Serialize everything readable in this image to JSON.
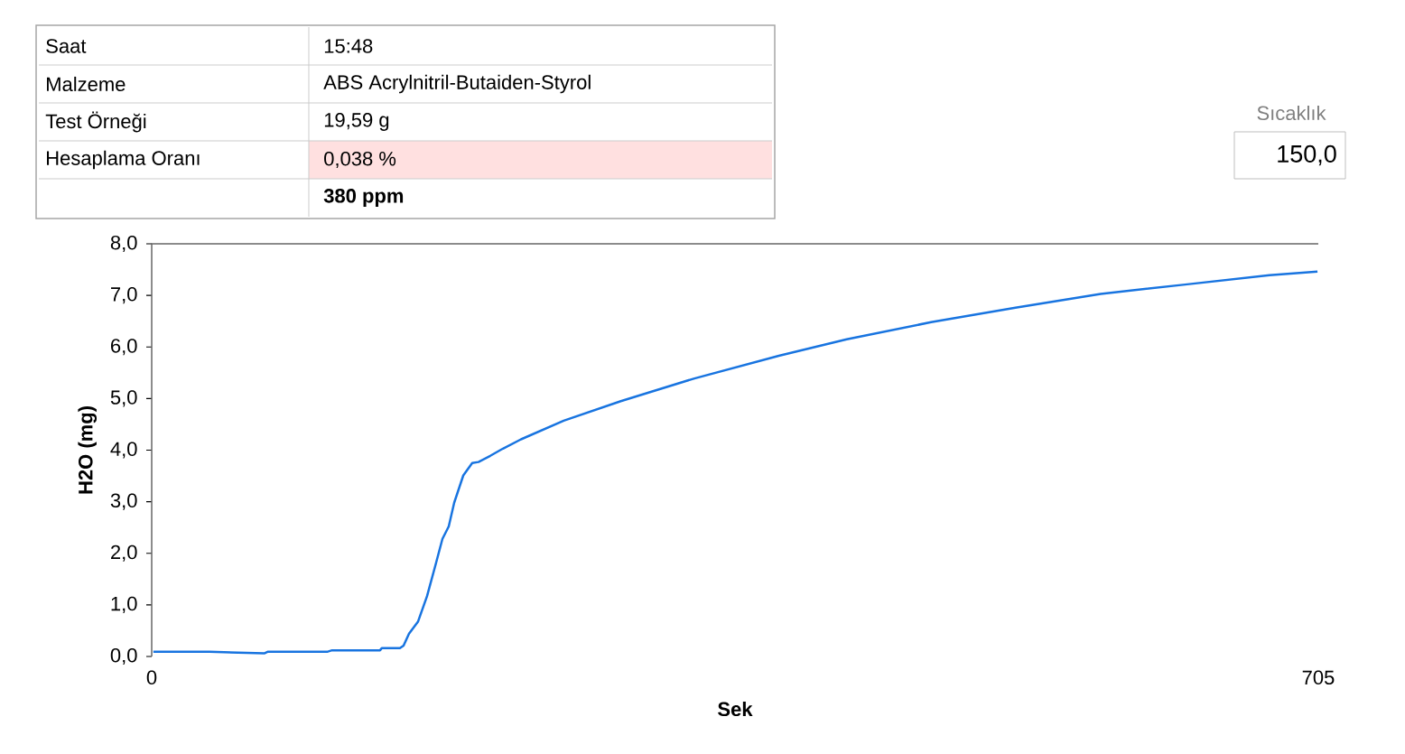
{
  "chart_data": {
    "type": "line",
    "xlabel": "Sek",
    "ylabel": "H2O (mg)",
    "xlim": [
      0,
      705
    ],
    "ylim": [
      0,
      8
    ],
    "xticks": [
      0,
      705
    ],
    "yticks": [
      {
        "value": 0,
        "label": "0,0"
      },
      {
        "value": 1,
        "label": "1,0"
      },
      {
        "value": 2,
        "label": "2,0"
      },
      {
        "value": 3,
        "label": "3,0"
      },
      {
        "value": 4,
        "label": "4,0"
      },
      {
        "value": 5,
        "label": "5,0"
      },
      {
        "value": 6,
        "label": "6,0"
      },
      {
        "value": 7,
        "label": "7,0"
      },
      {
        "value": 8,
        "label": "8,0"
      }
    ],
    "grid": false,
    "marker": "none",
    "line_style": "solid",
    "x": [
      1,
      35,
      68,
      70,
      106,
      109,
      138,
      139,
      150,
      152.2,
      155.5,
      161,
      166.4,
      171.9,
      175.7,
      179.5,
      182.8,
      188.3,
      193.7,
      197.5,
      204.6,
      212.3,
      223.2,
      249,
      283.5,
      328,
      379,
      420,
      471,
      522,
      573.5,
      624.5,
      675.5,
      704.5
    ],
    "series": [
      {
        "color": "#1874e0",
        "values": [
          0.09,
          0.09,
          0.06,
          0.09,
          0.09,
          0.12,
          0.12,
          0.16,
          0.16,
          0.21,
          0.44,
          0.68,
          1.17,
          1.82,
          2.28,
          2.52,
          2.98,
          3.51,
          3.75,
          3.77,
          3.89,
          4.03,
          4.21,
          4.57,
          4.95,
          5.39,
          5.83,
          6.15,
          6.48,
          6.76,
          7.03,
          7.21,
          7.39,
          7.46
        ]
      }
    ],
    "annotations": [
      "Saat",
      "15:48",
      "Malzeme",
      "ABS Acrylnitril-Butaiden-Styrol",
      "Test Örneği",
      "19,59 g",
      "Hesaplama Oranı",
      "0,038 %",
      "380 ppm",
      "Sıcaklık",
      "150,0"
    ]
  }
}
